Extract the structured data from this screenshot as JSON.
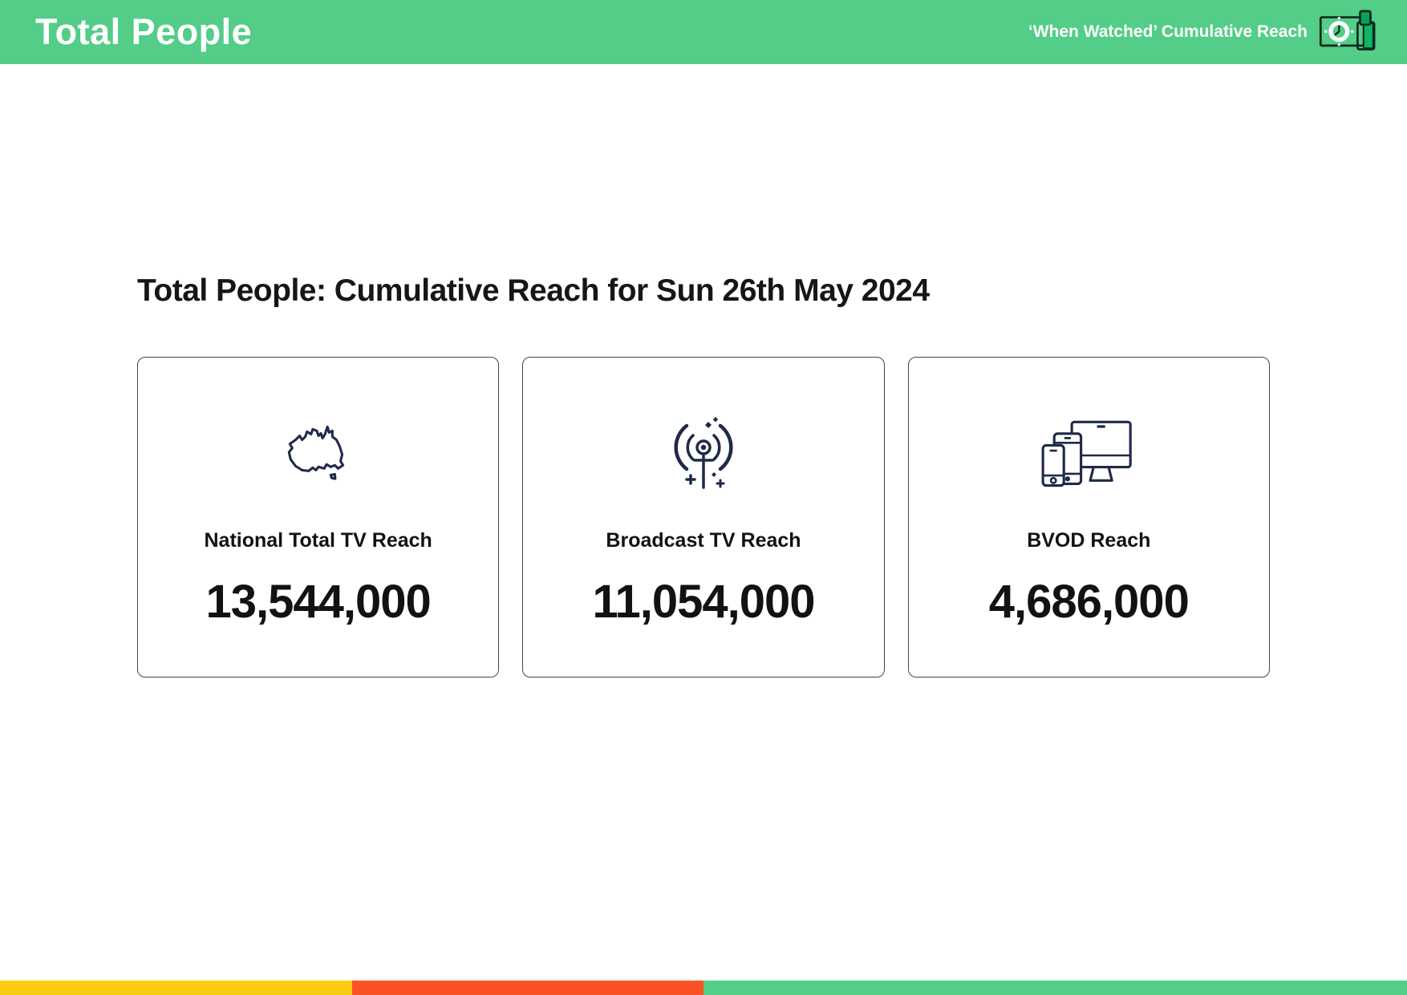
{
  "header": {
    "title": "Total People",
    "right_label": "‘When Watched’ Cumulative Reach"
  },
  "main": {
    "title": "Total People: Cumulative Reach for Sun 26th May 2024"
  },
  "cards": [
    {
      "icon": "australia-map-icon",
      "label": "National Total TV Reach",
      "value": "13,544,000"
    },
    {
      "icon": "broadcast-tower-icon",
      "label": "Broadcast TV Reach",
      "value": "11,054,000"
    },
    {
      "icon": "multi-device-icon",
      "label": "BVOD Reach",
      "value": "4,686,000"
    }
  ],
  "colors": {
    "header_green": "#53cd88",
    "icon_navy": "#1e2a47",
    "bar_yellow": "#f8cc12",
    "bar_red": "#fb5126",
    "bar_green": "#53cd88"
  },
  "footer_bar": {
    "segments": [
      {
        "name": "yellow",
        "color": "#f8cc12",
        "width_pct": 25
      },
      {
        "name": "red",
        "color": "#fb5126",
        "width_pct": 25
      },
      {
        "name": "green",
        "color": "#53cd88",
        "width_pct": 50
      }
    ]
  }
}
